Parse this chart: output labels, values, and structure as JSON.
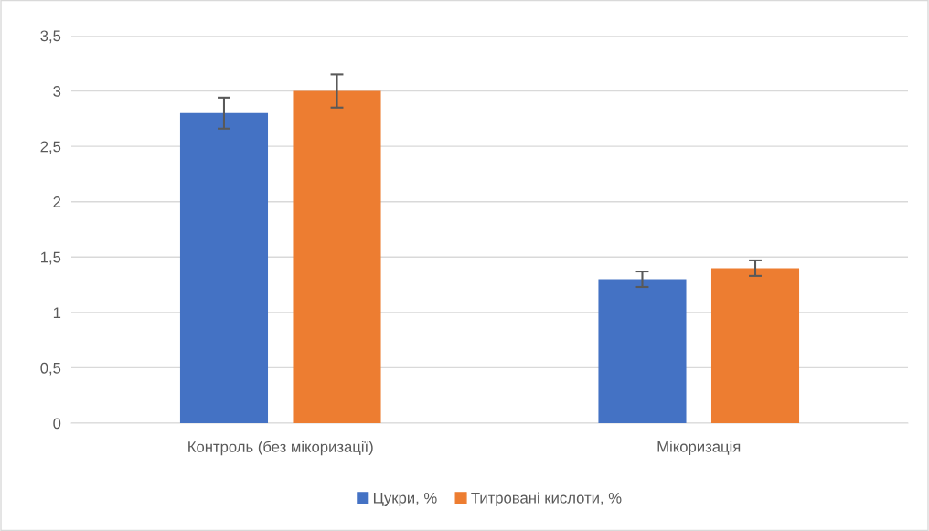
{
  "chart_data": {
    "type": "bar",
    "categories": [
      "Контроль (без мікоризації)",
      "Мікоризація"
    ],
    "series": [
      {
        "name": "Цукри, %",
        "color": "#4472c4",
        "values": [
          2.8,
          1.3
        ],
        "errors": [
          0.14,
          0.07
        ]
      },
      {
        "name": "Титровані кислоти, %",
        "color": "#ed7d31",
        "values": [
          3.0,
          1.4
        ],
        "errors": [
          0.15,
          0.07
        ]
      }
    ],
    "ylim": [
      0,
      3.5
    ],
    "yticks": [
      {
        "value": 0,
        "label": "0"
      },
      {
        "value": 0.5,
        "label": "0,5"
      },
      {
        "value": 1,
        "label": "1"
      },
      {
        "value": 1.5,
        "label": "1,5"
      },
      {
        "value": 2,
        "label": "2"
      },
      {
        "value": 2.5,
        "label": "2,5"
      },
      {
        "value": 3,
        "label": "3"
      },
      {
        "value": 3.5,
        "label": "3,5"
      }
    ],
    "grid": "y",
    "legend": "bottom"
  }
}
